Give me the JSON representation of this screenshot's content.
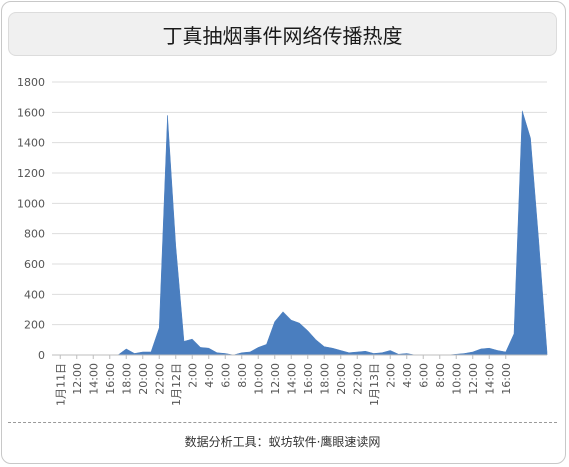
{
  "chart_data": {
    "type": "area",
    "title": "丁真抽烟事件网络传播热度",
    "xlabel": "",
    "ylabel": "",
    "ylim": [
      0,
      1800
    ],
    "yticks": [
      0,
      200,
      400,
      600,
      800,
      1000,
      1200,
      1400,
      1600,
      1800
    ],
    "xtick_labels": [
      "1月11日",
      "12:00",
      "14:00",
      "16:00",
      "18:00",
      "20:00",
      "22:00",
      "1月12日",
      "2:00",
      "4:00",
      "6:00",
      "8:00",
      "10:00",
      "12:00",
      "14:00",
      "16:00",
      "18:00",
      "20:00",
      "22:00",
      "1月13日",
      "2:00",
      "4:00",
      "6:00",
      "8:00",
      "10:00",
      "12:00",
      "14:00",
      "16:00"
    ],
    "grid": true,
    "legend": "none",
    "color": "#4a7ebf",
    "series": [
      {
        "values": [
          0,
          0,
          0,
          0,
          0,
          0,
          0,
          0,
          0,
          40,
          10,
          20,
          20,
          180,
          1580,
          720,
          90,
          105,
          50,
          45,
          15,
          10,
          0,
          15,
          20,
          50,
          70,
          220,
          285,
          230,
          210,
          160,
          100,
          55,
          45,
          30,
          15,
          20,
          25,
          10,
          15,
          30,
          5,
          10,
          0,
          0,
          0,
          0,
          0,
          5,
          10,
          20,
          40,
          45,
          30,
          20,
          140,
          1610,
          1430,
          750,
          20
        ]
      }
    ]
  },
  "footer": "数据分析工具：蚁坊软件·鹰眼速读网"
}
